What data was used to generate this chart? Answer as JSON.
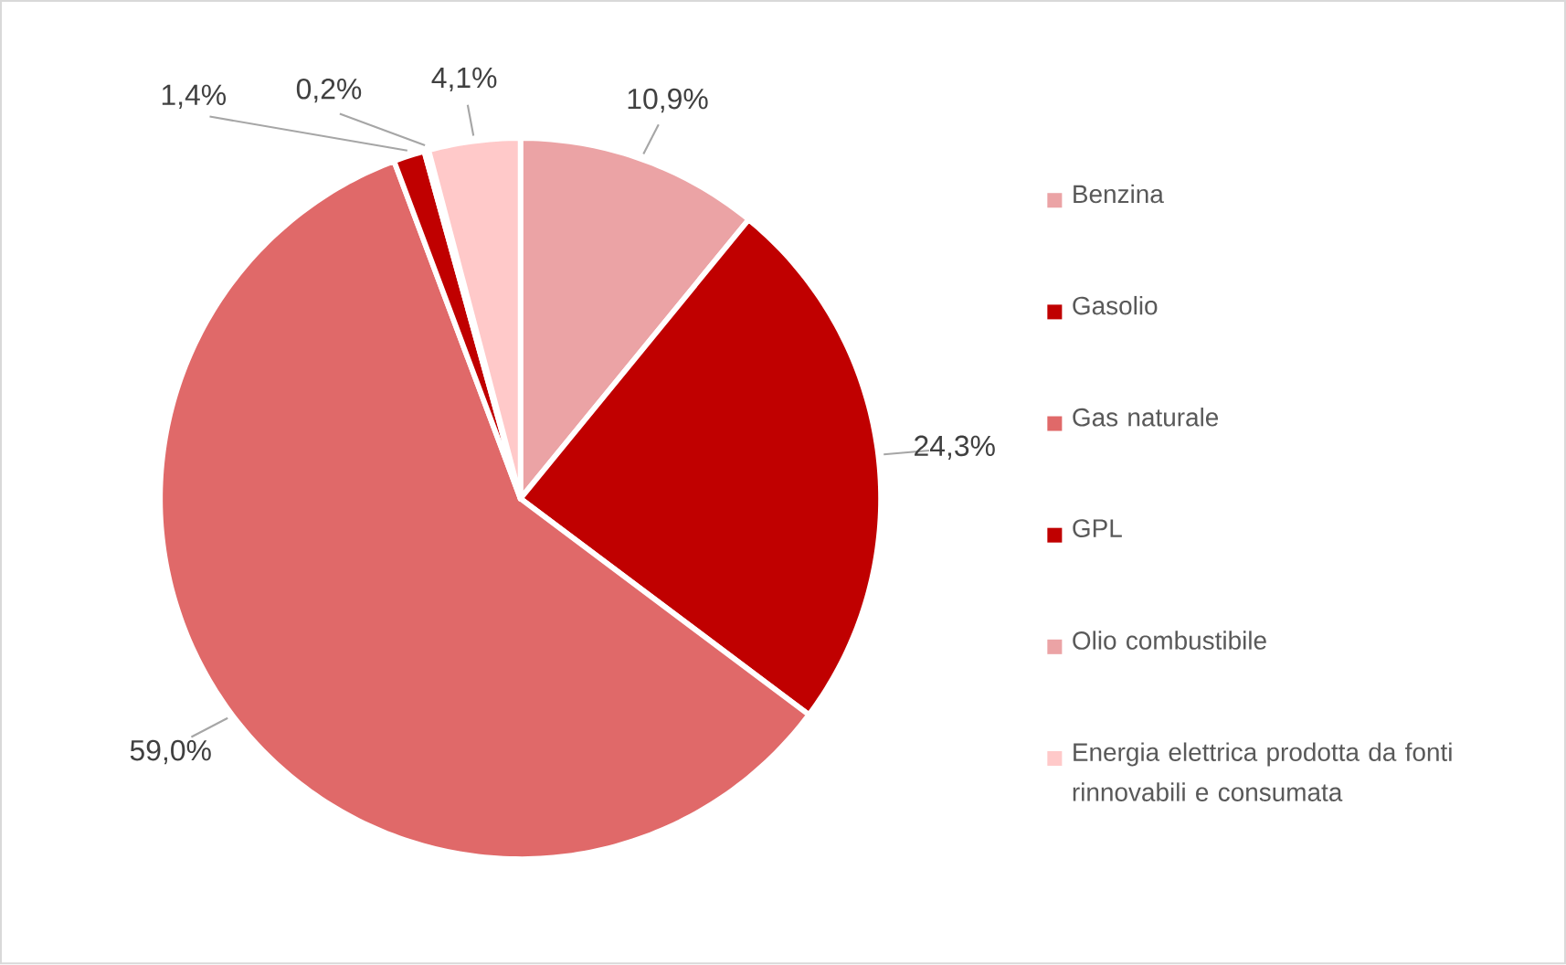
{
  "chart_data": {
    "type": "pie",
    "categories": [
      "Benzina",
      "Gasolio",
      "Gas naturale",
      "GPL",
      "Olio combustibile",
      "Energia elettrica prodotta da fonti rinnovabili e consumata"
    ],
    "values": [
      10.9,
      24.3,
      59.0,
      1.4,
      0.2,
      4.1
    ],
    "value_labels": [
      "10,9%",
      "24,3%",
      "59,0%",
      "1,4%",
      "0,2%",
      "4,1%"
    ],
    "colors": [
      "#eba3a5",
      "#c00000",
      "#e06969",
      "#c00000",
      "#eba3a5",
      "#ffc9c9"
    ],
    "legend": "right"
  }
}
